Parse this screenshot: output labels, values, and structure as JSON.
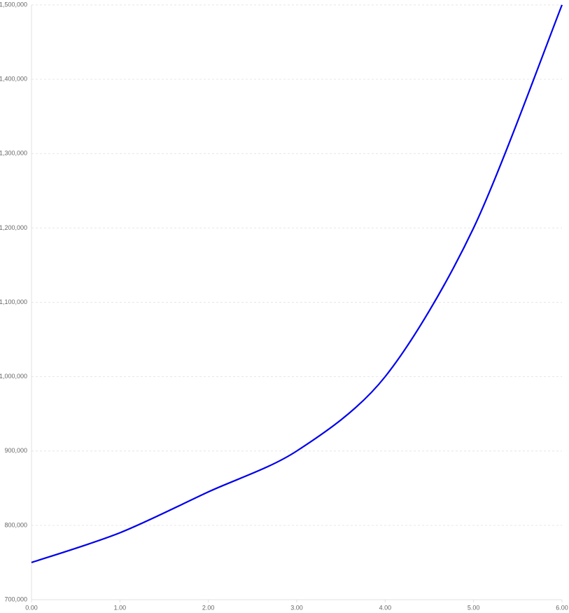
{
  "chart_data": {
    "type": "line",
    "x": [
      0,
      1,
      2,
      3,
      4,
      5,
      6
    ],
    "values": [
      750000,
      790000,
      845000,
      900000,
      1000000,
      1200000,
      1500000
    ],
    "color": "#0000ee",
    "xlim": [
      0,
      6
    ],
    "xticks": [
      {
        "value": 0,
        "label": "0.00"
      },
      {
        "value": 1,
        "label": "1.00"
      },
      {
        "value": 2,
        "label": "2.00"
      },
      {
        "value": 3,
        "label": "3.00"
      },
      {
        "value": 4,
        "label": "4.00"
      },
      {
        "value": 5,
        "label": "5.00"
      },
      {
        "value": 6,
        "label": "6.00"
      }
    ],
    "ylim": [
      700000,
      1500000
    ],
    "yticks": [
      {
        "value": 700000,
        "label": "700,000"
      },
      {
        "value": 800000,
        "label": "800,000"
      },
      {
        "value": 900000,
        "label": "900,000"
      },
      {
        "value": 1000000,
        "label": "1,000,000"
      },
      {
        "value": 1100000,
        "label": "1,100,000"
      },
      {
        "value": 1200000,
        "label": "1,200,000"
      },
      {
        "value": 1300000,
        "label": "1,300,000"
      },
      {
        "value": 1400000,
        "label": "1,400,000"
      },
      {
        "value": 1500000,
        "label": "1,500,000"
      }
    ],
    "grid": true
  }
}
